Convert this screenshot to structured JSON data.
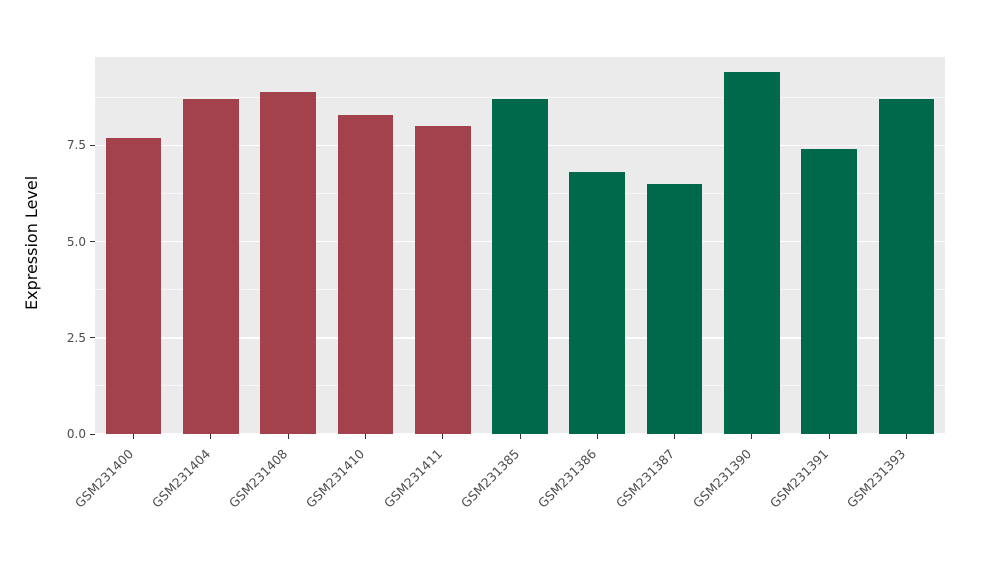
{
  "chart_data": {
    "type": "bar",
    "title": "",
    "xlabel": "",
    "ylabel": "Expression Level",
    "ylim": [
      0,
      9.8
    ],
    "yticks": [
      0.0,
      2.5,
      5.0,
      7.5
    ],
    "ytick_labels": [
      "0.0",
      "2.5",
      "5.0",
      "7.5"
    ],
    "minor_ticks": [
      1.25,
      3.75,
      6.25,
      8.75
    ],
    "grid": true,
    "legend": "none",
    "panel_bg": "#EBEBEB",
    "grid_color": "#FFFFFF",
    "categories": [
      "GSM231400",
      "GSM231404",
      "GSM231408",
      "GSM231410",
      "GSM231411",
      "GSM231385",
      "GSM231386",
      "GSM231387",
      "GSM231390",
      "GSM231391",
      "GSM231393"
    ],
    "values": [
      7.7,
      8.7,
      8.9,
      8.3,
      8.0,
      8.7,
      6.8,
      6.5,
      9.4,
      7.4,
      8.7
    ],
    "colors": [
      "#A3424C",
      "#A3424C",
      "#A3424C",
      "#A3424C",
      "#A3424C",
      "#00694B",
      "#00694B",
      "#00694B",
      "#00694B",
      "#00694B",
      "#00694B"
    ],
    "group_colors": {
      "maroon_group": "#A3424C",
      "green_group": "#00694B"
    }
  }
}
